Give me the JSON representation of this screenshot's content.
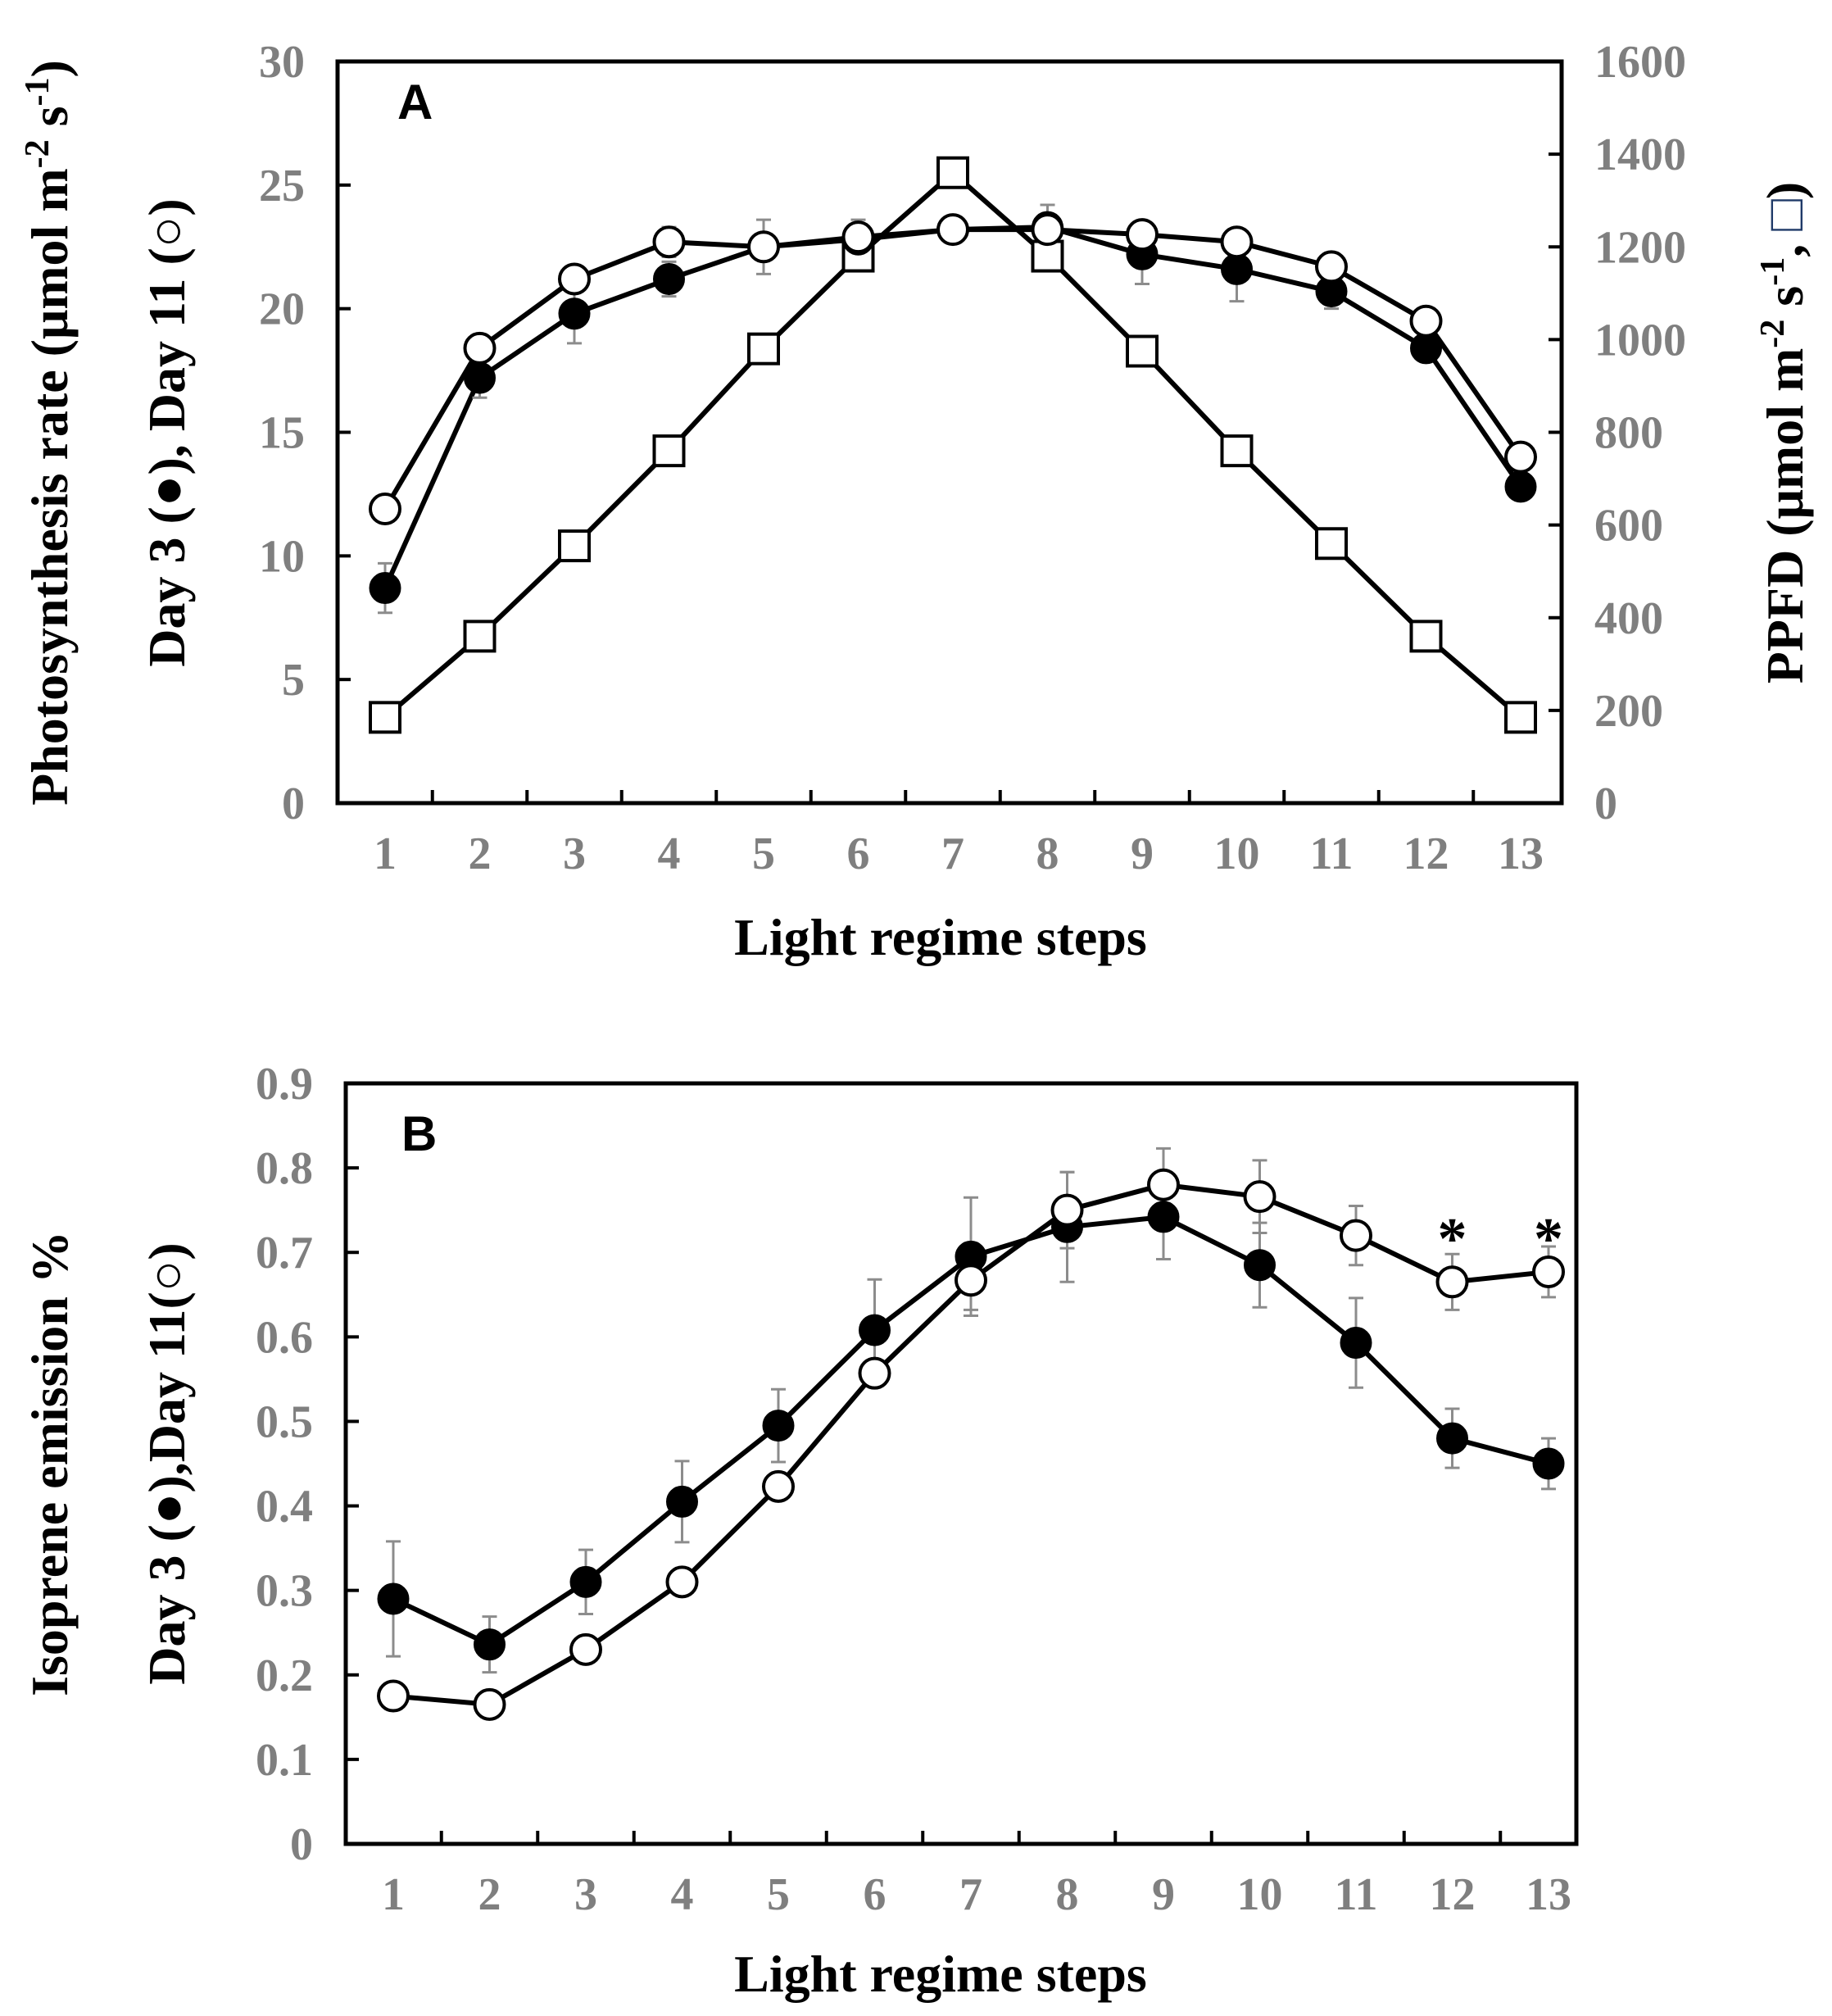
{
  "chart_data": [
    {
      "panel": "A",
      "type": "line",
      "x": [
        1,
        2,
        3,
        4,
        5,
        6,
        7,
        8,
        9,
        10,
        11,
        12,
        13
      ],
      "xlabel": "Light regime steps",
      "ylabel_line1": "Photosynthesis rate (µmol m⁻² s⁻¹)",
      "ylabel_line2": "Day 3 (●), Day 11 (○)",
      "y2label": "PPFD (µmol m⁻² s⁻¹, □)",
      "ylim": [
        0,
        30
      ],
      "yticks": [
        0,
        5,
        10,
        15,
        20,
        25,
        30
      ],
      "y2lim": [
        0,
        1600
      ],
      "y2ticks": [
        0,
        200,
        400,
        600,
        800,
        1000,
        1200,
        1400,
        1600
      ],
      "series": [
        {
          "name": "Day 3",
          "marker": "filled-circle",
          "axis": "left",
          "values": [
            8.7,
            17.2,
            19.8,
            21.2,
            22.5,
            22.8,
            23.2,
            23.3,
            22.2,
            21.6,
            20.7,
            18.4,
            12.8
          ],
          "errors": [
            1.0,
            0.8,
            1.2,
            0.7,
            1.1,
            0.8,
            0.5,
            0.9,
            1.2,
            1.3,
            0.7,
            0.5,
            0.3
          ]
        },
        {
          "name": "Day 11",
          "marker": "open-circle",
          "axis": "left",
          "values": [
            11.9,
            18.4,
            21.2,
            22.7,
            22.5,
            22.9,
            23.2,
            23.2,
            23.0,
            22.7,
            21.7,
            19.5,
            14.0
          ],
          "errors": [
            0.3,
            0.4,
            0.5,
            0.6,
            0.5,
            0.4,
            0.4,
            0.5,
            0.4,
            0.4,
            0.4,
            0.4,
            0.3
          ]
        },
        {
          "name": "PPFD",
          "marker": "open-square",
          "axis": "right",
          "values": [
            185,
            360,
            555,
            760,
            980,
            1180,
            1360,
            1180,
            975,
            760,
            560,
            360,
            185
          ]
        }
      ],
      "annotations": []
    },
    {
      "panel": "B",
      "type": "line",
      "x": [
        1,
        2,
        3,
        4,
        5,
        6,
        7,
        8,
        9,
        10,
        11,
        12,
        13
      ],
      "xlabel": "Light regime steps",
      "ylabel_line1": "Isoprene emission %",
      "ylabel_line2": "Day 3 (●),Day 11(○)",
      "ylim": [
        0,
        0.9
      ],
      "yticks": [
        0,
        0.1,
        0.2,
        0.3,
        0.4,
        0.5,
        0.6,
        0.7,
        0.8,
        0.9
      ],
      "series": [
        {
          "name": "Day 3",
          "marker": "filled-circle",
          "axis": "left",
          "values": [
            0.29,
            0.236,
            0.31,
            0.405,
            0.495,
            0.608,
            0.695,
            0.73,
            0.742,
            0.685,
            0.593,
            0.48,
            0.45
          ],
          "errors": [
            0.068,
            0.033,
            0.038,
            0.048,
            0.043,
            0.06,
            0.07,
            0.065,
            0.05,
            0.05,
            0.053,
            0.035,
            0.03
          ]
        },
        {
          "name": "Day 11",
          "marker": "open-circle",
          "axis": "left",
          "values": [
            0.175,
            0.165,
            0.23,
            0.31,
            0.423,
            0.557,
            0.667,
            0.75,
            0.78,
            0.766,
            0.72,
            0.665,
            0.677
          ],
          "errors": [
            0.0,
            0.0,
            0.0,
            0.0,
            0.0,
            0.0,
            0.035,
            0.045,
            0.043,
            0.043,
            0.035,
            0.033,
            0.03
          ]
        }
      ],
      "annotations": [
        {
          "text": "*",
          "x": 12,
          "y": 0.72
        },
        {
          "text": "*",
          "x": 13,
          "y": 0.72
        }
      ]
    }
  ]
}
